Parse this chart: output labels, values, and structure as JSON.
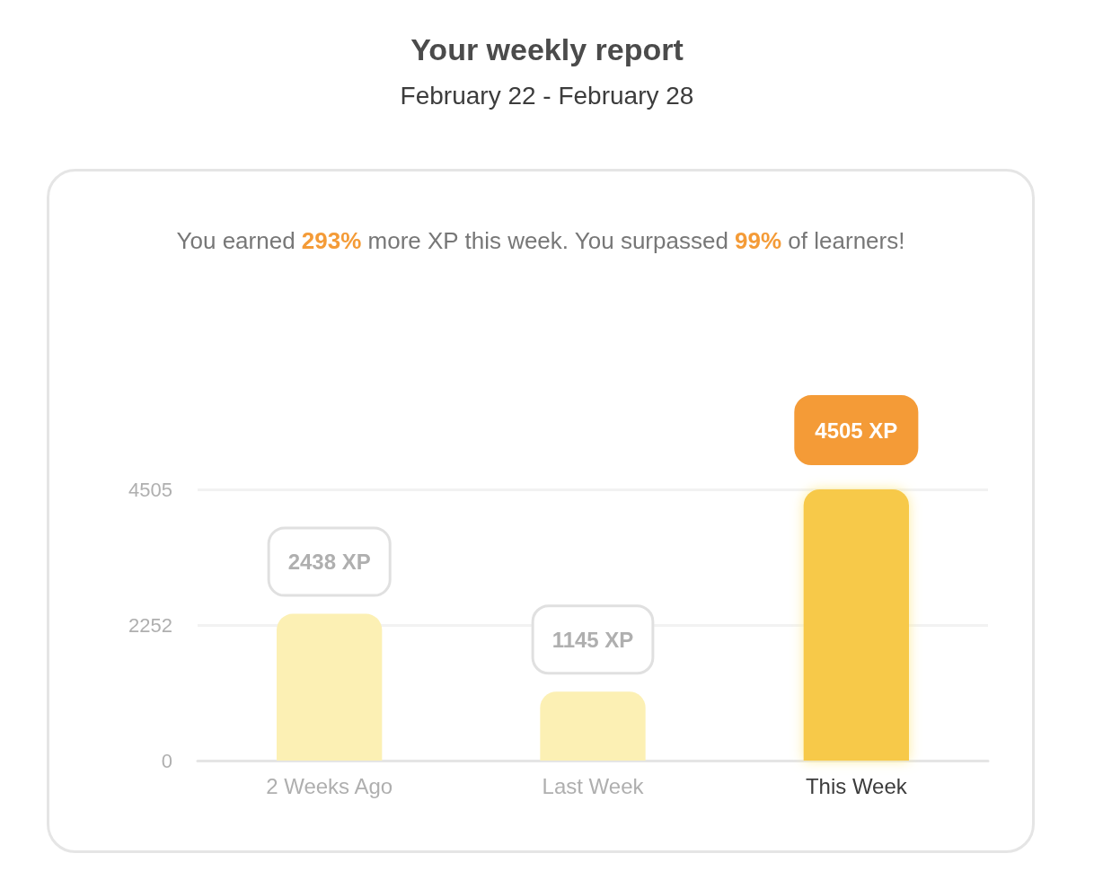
{
  "chart_data": {
    "type": "bar",
    "title": "Your weekly report",
    "subtitle": "February 22 - February 28",
    "annotations": [
      "You earned 293% more XP this week. You surpassed 99% of learners!"
    ],
    "categories": [
      "2 Weeks Ago",
      "Last Week",
      "This Week"
    ],
    "values": [
      2438,
      1145,
      4505
    ],
    "colors": [
      "#fcf0b4",
      "#fcf0b4",
      "#f7c948"
    ],
    "value_labels": [
      "2438 XP",
      "1145 XP",
      "4505 XP"
    ],
    "ylim": [
      0,
      4505
    ],
    "yticks": [
      0,
      2252,
      4505
    ],
    "grid": "y"
  }
}
